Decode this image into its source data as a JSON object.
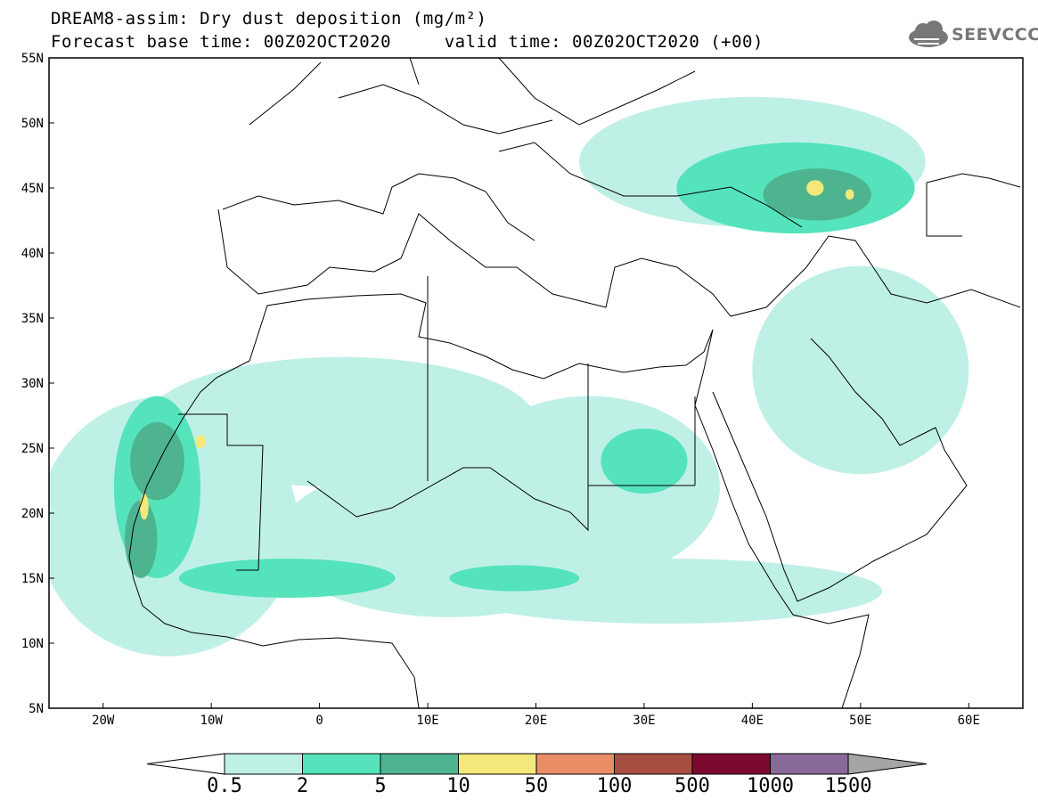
{
  "title": {
    "line1": "DREAM8-assim: Dry dust deposition (mg/m²)",
    "line2": "Forecast base time: 00Z02OCT2020     valid time: 00Z02OCT2020 (+00)"
  },
  "logo": {
    "text": "SEEVCCC",
    "icon": "cloud-logo-icon"
  },
  "axes": {
    "lon_range": [
      -25,
      65
    ],
    "lat_range": [
      5,
      55
    ],
    "lon_ticks": [
      {
        "value": -20,
        "label": "20W"
      },
      {
        "value": -10,
        "label": "10W"
      },
      {
        "value": 0,
        "label": "0"
      },
      {
        "value": 10,
        "label": "10E"
      },
      {
        "value": 20,
        "label": "20E"
      },
      {
        "value": 30,
        "label": "30E"
      },
      {
        "value": 40,
        "label": "40E"
      },
      {
        "value": 50,
        "label": "50E"
      },
      {
        "value": 60,
        "label": "60E"
      }
    ],
    "lat_ticks": [
      {
        "value": 55,
        "label": "55N"
      },
      {
        "value": 50,
        "label": "50N"
      },
      {
        "value": 45,
        "label": "45N"
      },
      {
        "value": 40,
        "label": "40N"
      },
      {
        "value": 35,
        "label": "35N"
      },
      {
        "value": 30,
        "label": "30N"
      },
      {
        "value": 25,
        "label": "25N"
      },
      {
        "value": 20,
        "label": "20N"
      },
      {
        "value": 15,
        "label": "15N"
      },
      {
        "value": 10,
        "label": "10N"
      },
      {
        "value": 5,
        "label": "5N"
      }
    ]
  },
  "colorbar": {
    "colors": [
      "#bff0e6",
      "#55e3bc",
      "#4eb48f",
      "#f3e87a",
      "#e98d67",
      "#a74e40",
      "#7c0a2e",
      "#886a98",
      "#a5a5a5"
    ],
    "under_color": "#ffffff",
    "labels": [
      "0.5",
      "2",
      "5",
      "10",
      "50",
      "100",
      "500",
      "1000",
      "1500"
    ]
  },
  "dust_regions": [
    {
      "level": 0,
      "lon": -14,
      "lat": 19,
      "rx": 12,
      "ry": 10
    },
    {
      "level": 0,
      "lon": 12,
      "lat": 18,
      "rx": 16,
      "ry": 6
    },
    {
      "level": 0,
      "lon": 2,
      "lat": 27,
      "rx": 18,
      "ry": 5
    },
    {
      "level": 0,
      "lon": 25,
      "lat": 22,
      "rx": 12,
      "ry": 7
    },
    {
      "level": 0,
      "lon": 40,
      "lat": 47,
      "rx": 16,
      "ry": 5
    },
    {
      "level": 0,
      "lon": 50,
      "lat": 31,
      "rx": 10,
      "ry": 8
    },
    {
      "level": 0,
      "lon": 32,
      "lat": 14,
      "rx": 20,
      "ry": 2.5
    },
    {
      "level": 1,
      "lon": -15,
      "lat": 22,
      "rx": 4,
      "ry": 7
    },
    {
      "level": 1,
      "lon": -3,
      "lat": 15,
      "rx": 10,
      "ry": 1.5
    },
    {
      "level": 1,
      "lon": 30,
      "lat": 24,
      "rx": 4,
      "ry": 2.5
    },
    {
      "level": 1,
      "lon": 44,
      "lat": 45,
      "rx": 11,
      "ry": 3.5
    },
    {
      "level": 1,
      "lon": 18,
      "lat": 15,
      "rx": 6,
      "ry": 1
    },
    {
      "level": 2,
      "lon": -15,
      "lat": 24,
      "rx": 2.5,
      "ry": 3
    },
    {
      "level": 2,
      "lon": -16.5,
      "lat": 18,
      "rx": 1.5,
      "ry": 3
    },
    {
      "level": 2,
      "lon": 46,
      "lat": 44.5,
      "rx": 5,
      "ry": 2
    },
    {
      "level": 3,
      "lon": -11,
      "lat": 25.5,
      "rx": 0.5,
      "ry": 0.5
    },
    {
      "level": 3,
      "lon": -16.2,
      "lat": 20.5,
      "rx": 0.4,
      "ry": 1
    },
    {
      "level": 3,
      "lon": 45.8,
      "lat": 45,
      "rx": 0.8,
      "ry": 0.6
    },
    {
      "level": 3,
      "lon": 49,
      "lat": 44.5,
      "rx": 0.4,
      "ry": 0.4
    }
  ]
}
